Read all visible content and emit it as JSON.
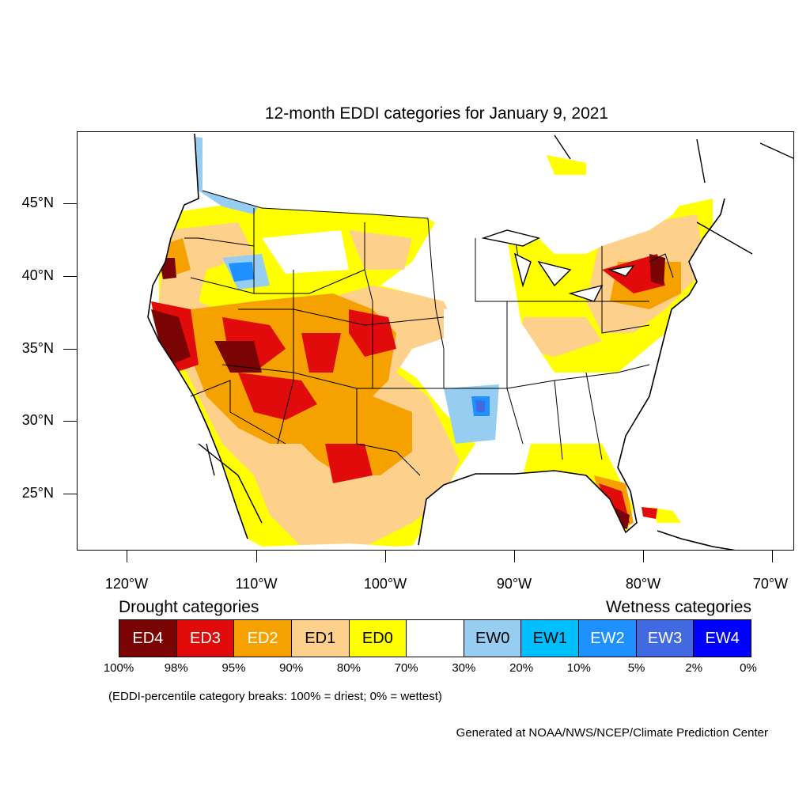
{
  "title": "12-month EDDI categories for January 9, 2021",
  "lat_labels": [
    "45°N",
    "40°N",
    "35°N",
    "30°N",
    "25°N"
  ],
  "lon_labels": [
    "120°W",
    "110°W",
    "100°W",
    "90°W",
    "80°W",
    "70°W"
  ],
  "legend": {
    "drought_heading": "Drought categories",
    "wetness_heading": "Wetness categories",
    "categories": [
      {
        "label": "ED4",
        "color": "#7a0403",
        "text_color": "#ffffff"
      },
      {
        "label": "ED3",
        "color": "#e10b0b",
        "text_color": "#ffffff"
      },
      {
        "label": "ED2",
        "color": "#f5a100",
        "text_color": "#ffffff"
      },
      {
        "label": "ED1",
        "color": "#fdd08c",
        "text_color": "#000000"
      },
      {
        "label": "ED0",
        "color": "#ffff00",
        "text_color": "#000000"
      },
      {
        "label": "",
        "color": "#ffffff",
        "text_color": "#000000"
      },
      {
        "label": "EW0",
        "color": "#96cdf0",
        "text_color": "#000000"
      },
      {
        "label": "EW1",
        "color": "#00bfff",
        "text_color": "#000000"
      },
      {
        "label": "EW2",
        "color": "#1e90ff",
        "text_color": "#ffffff"
      },
      {
        "label": "EW3",
        "color": "#4169e1",
        "text_color": "#ffffff"
      },
      {
        "label": "EW4",
        "color": "#0000ff",
        "text_color": "#ffffff"
      }
    ],
    "breaks": [
      "100%",
      "98%",
      "95%",
      "90%",
      "80%",
      "70%",
      "30%",
      "20%",
      "10%",
      "5%",
      "2%",
      "0%"
    ]
  },
  "note": "(EDDI-percentile category breaks: 100% = driest; 0% = wettest)",
  "credit": "Generated at NOAA/NWS/NCEP/Climate Prediction Center"
}
